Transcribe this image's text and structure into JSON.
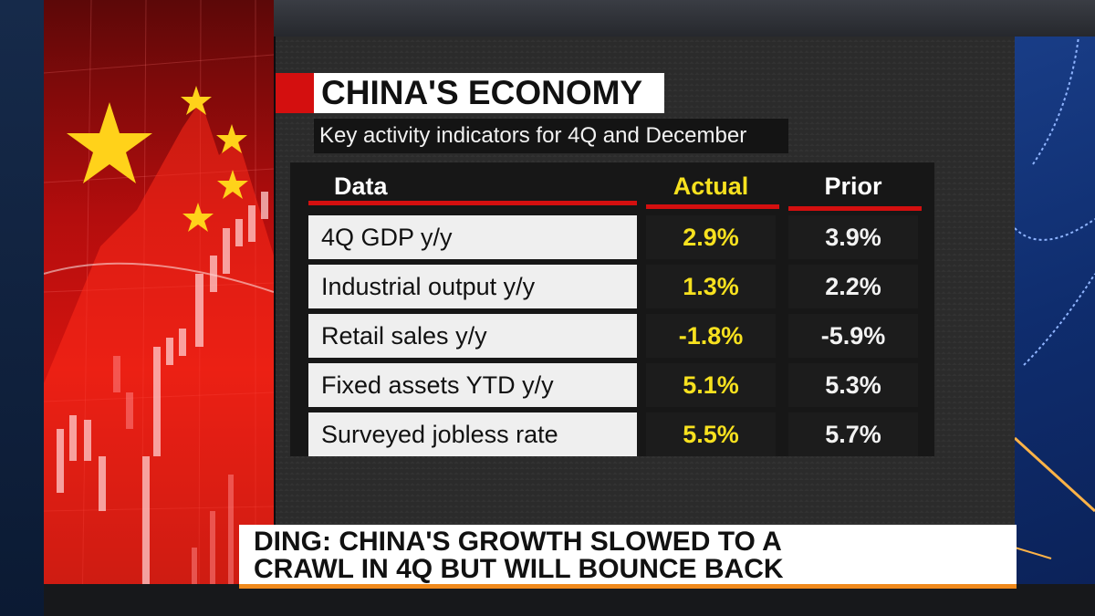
{
  "graphic": {
    "title": "CHINA'S ECONOMY",
    "subtitle": "Key activity indicators for 4Q and December",
    "columns": [
      "Data",
      "Actual",
      "Prior"
    ],
    "rows": [
      {
        "label": "4Q GDP y/y",
        "actual": "2.9%",
        "prior": "3.9%"
      },
      {
        "label": "Industrial output y/y",
        "actual": "1.3%",
        "prior": "2.2%"
      },
      {
        "label": "Retail sales y/y",
        "actual": "-1.8%",
        "prior": "-5.9%"
      },
      {
        "label": "Fixed assets YTD y/y",
        "actual": "5.1%",
        "prior": "5.3%"
      },
      {
        "label": "Surveyed jobless rate",
        "actual": "5.5%",
        "prior": "5.7%"
      }
    ]
  },
  "lower_third": {
    "line1": "DING: CHINA'S GROWTH SLOWED TO A",
    "line2": "CRAWL IN 4Q BUT WILL BOUNCE BACK"
  },
  "colors": {
    "accent_red": "#d40f0f",
    "actual_yellow": "#f7e11f",
    "lower_third_orange": "#f08a1c"
  }
}
